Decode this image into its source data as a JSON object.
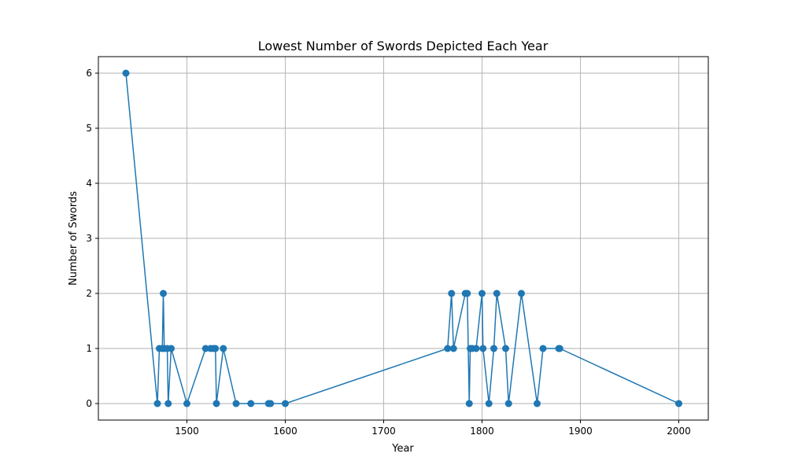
{
  "chart_data": {
    "type": "line",
    "title": "Lowest Number of Swords Depicted Each Year",
    "xlabel": "Year",
    "ylabel": "Number of Swords",
    "xlim": [
      1410,
      2030
    ],
    "ylim": [
      -0.3,
      6.3
    ],
    "xticks": [
      "1500",
      "1600",
      "1700",
      "1800",
      "1900",
      "2000"
    ],
    "yticks": [
      "0",
      "1",
      "2",
      "3",
      "4",
      "5",
      "6"
    ],
    "grid": true,
    "line_color": "#1f77b4",
    "marker": "circle",
    "x": [
      1438,
      1470,
      1472,
      1475,
      1476,
      1477,
      1480,
      1481,
      1484,
      1500,
      1519,
      1524,
      1527,
      1529,
      1530,
      1537,
      1550,
      1565,
      1583,
      1585,
      1600,
      1765,
      1769,
      1771,
      1783,
      1785,
      1787,
      1788,
      1790,
      1794,
      1800,
      1801,
      1807,
      1812,
      1815,
      1824,
      1827,
      1840,
      1856,
      1862,
      1878,
      1879,
      2000
    ],
    "y": [
      6,
      0,
      1,
      1,
      2,
      1,
      1,
      0,
      1,
      0,
      1,
      1,
      1,
      1,
      0,
      1,
      0,
      0,
      0,
      0,
      0,
      1,
      2,
      1,
      2,
      2,
      0,
      1,
      1,
      1,
      2,
      1,
      0,
      1,
      2,
      1,
      0,
      2,
      0,
      1,
      1,
      1,
      0
    ]
  }
}
